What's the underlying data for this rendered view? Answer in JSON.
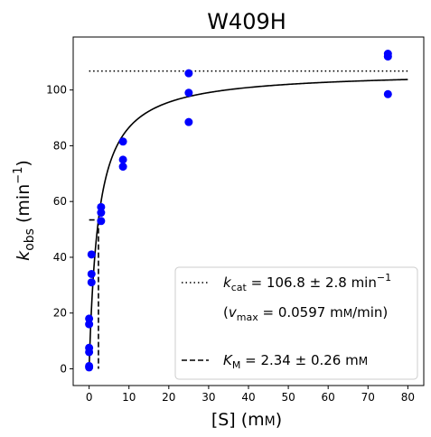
{
  "chart_data": {
    "type": "scatter",
    "title": "W409H",
    "xlabel": {
      "main": "[S] (m",
      "unit_smallcaps": "M",
      "close": ")"
    },
    "ylabel": {
      "main": "k",
      "sub": "obs",
      "mid": " (min",
      "sup": "−1",
      "close": ")"
    },
    "xlim": [
      -4,
      84
    ],
    "ylim": [
      -6,
      119
    ],
    "x_ticks": [
      0,
      10,
      20,
      30,
      40,
      50,
      60,
      70,
      80
    ],
    "y_ticks": [
      0,
      20,
      40,
      60,
      80,
      100
    ],
    "grid": false,
    "legend_position": "bottom-right",
    "series": [
      {
        "kind": "points",
        "color": "#0000ff",
        "points": [
          [
            0,
            0.5
          ],
          [
            0,
            1
          ],
          [
            0,
            6
          ],
          [
            0,
            7.5
          ],
          [
            0,
            16
          ],
          [
            0,
            18
          ],
          [
            0.6,
            31
          ],
          [
            0.6,
            34
          ],
          [
            0.6,
            41
          ],
          [
            3,
            53
          ],
          [
            3,
            56
          ],
          [
            3,
            58
          ],
          [
            8.5,
            72.5
          ],
          [
            8.5,
            75
          ],
          [
            8.5,
            81.5
          ],
          [
            25,
            88.5
          ],
          [
            25,
            99
          ],
          [
            25,
            106
          ],
          [
            75,
            98.5
          ],
          [
            75,
            112
          ],
          [
            75,
            113
          ]
        ]
      },
      {
        "kind": "fit",
        "color": "#000000",
        "vmax": 106.8,
        "km": 2.34,
        "x_range": [
          0,
          80
        ]
      },
      {
        "kind": "kcat_line",
        "style": "dotted",
        "y": 106.8,
        "x_range": [
          0,
          80
        ]
      },
      {
        "kind": "km_marker",
        "style": "dashed",
        "x": 2.34,
        "y_half": 53.4
      }
    ],
    "legend": [
      {
        "style": "dotted",
        "sym": "k",
        "sub": "cat",
        "text": " = 106.8 ± 2.8 min",
        "sup": "−1"
      },
      {
        "style": "none",
        "open": "(",
        "sym": "v",
        "sub": "max",
        "text": " = 0.0597 m",
        "unit_smallcaps": "M",
        "tail": "/min)"
      },
      {
        "style": "dashed",
        "sym": "K",
        "sub": "M",
        "text": " = 2.34 ± 0.26 m",
        "unit_smallcaps": "M"
      }
    ]
  }
}
